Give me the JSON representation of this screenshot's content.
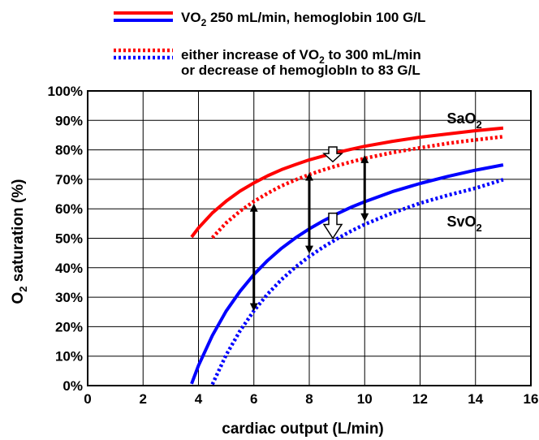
{
  "chart_data": {
    "type": "line",
    "xlabel": "cardiac output (L/min)",
    "ylabel": {
      "pre": "O",
      "sub": "2",
      "post": " saturation (%)"
    },
    "xlim": [
      0,
      16
    ],
    "ylim": [
      0,
      100
    ],
    "xticks": [
      0,
      2,
      4,
      6,
      8,
      10,
      12,
      14,
      16
    ],
    "yticks": [
      0,
      10,
      20,
      30,
      40,
      50,
      60,
      70,
      80,
      90,
      100
    ],
    "ytick_suffix": "%",
    "grid": true,
    "legend": [
      {
        "style": "solid",
        "colors": [
          "#ff0000",
          "#0000ff"
        ],
        "lines": [
          {
            "parts": [
              {
                "t": "VO"
              },
              {
                "t": "2",
                "sub": true
              },
              {
                "t": " 250 mL/min, hemoglobin 100 G/L"
              }
            ]
          }
        ]
      },
      {
        "style": "dotted",
        "colors": [
          "#ff0000",
          "#0000ff"
        ],
        "lines": [
          {
            "parts": [
              {
                "t": "either increase of VO"
              },
              {
                "t": "2",
                "sub": true
              },
              {
                "t": "  to 300 mL/min"
              }
            ]
          },
          {
            "parts": [
              {
                "t": "or decrease of hemoglobIn to 83 G/L"
              }
            ]
          }
        ]
      }
    ],
    "curve_labels": [
      {
        "pre": "SaO",
        "sub": "2",
        "x": 13.6,
        "y": 89
      },
      {
        "pre": "SvO",
        "sub": "2",
        "x": 13.6,
        "y": 54
      }
    ],
    "series": [
      {
        "color": "#ff0000",
        "style": "solid",
        "x": [
          3.75,
          4,
          4.5,
          5,
          5.5,
          6,
          6.5,
          7,
          7.5,
          8,
          8.5,
          9,
          9.5,
          10,
          11,
          12,
          13,
          14,
          15
        ],
        "y": [
          50.4,
          53.5,
          58.6,
          62.6,
          66.0,
          68.8,
          71.2,
          73.3,
          75.0,
          76.6,
          77.9,
          79.1,
          80.2,
          81.2,
          82.9,
          84.3,
          85.4,
          86.5,
          87.4
        ]
      },
      {
        "color": "#ff0000",
        "style": "dotted",
        "x": [
          4.5,
          5,
          5.5,
          6,
          6.5,
          7,
          7.5,
          8,
          8.5,
          9,
          9.5,
          10,
          11,
          12,
          13,
          14,
          15
        ],
        "y": [
          50.2,
          55.2,
          59.2,
          62.5,
          65.3,
          67.8,
          69.8,
          71.6,
          73.2,
          74.6,
          75.9,
          77.1,
          79.1,
          80.7,
          82.2,
          83.4,
          84.5
        ]
      },
      {
        "color": "#0000ff",
        "style": "solid",
        "x": [
          3.75,
          4,
          4.5,
          5,
          5.5,
          6,
          6.5,
          7,
          7.5,
          8,
          8.5,
          9,
          9.5,
          10,
          11,
          12,
          13,
          14,
          15
        ],
        "y": [
          0.6,
          6.8,
          17.0,
          25.3,
          32.0,
          37.7,
          42.5,
          46.6,
          50.1,
          53.2,
          55.9,
          58.3,
          60.5,
          62.4,
          65.8,
          68.6,
          71.0,
          73.1,
          74.9
        ]
      },
      {
        "color": "#0000ff",
        "style": "dotted",
        "x": [
          4.5,
          5,
          5.5,
          6,
          6.5,
          7,
          7.5,
          8,
          8.5,
          9,
          9.5,
          10,
          11,
          12,
          13,
          14,
          15
        ],
        "y": [
          0.4,
          10.4,
          18.6,
          25.4,
          31.1,
          36.0,
          40.2,
          43.8,
          47.0,
          49.8,
          52.4,
          54.7,
          58.6,
          61.9,
          64.6,
          67.0,
          69.9
        ]
      }
    ],
    "double_arrows": [
      {
        "x": 6,
        "y1": 61.5,
        "y2": 25.5
      },
      {
        "x": 8,
        "y1": 72.0,
        "y2": 45.0
      },
      {
        "x": 10,
        "y1": 78.0,
        "y2": 56.0
      }
    ],
    "shift_arrows": [
      {
        "x": 8.85,
        "y_top": 81,
        "y_bottom": 76
      },
      {
        "x": 8.85,
        "y_top": 58.5,
        "y_bottom": 50
      }
    ]
  }
}
